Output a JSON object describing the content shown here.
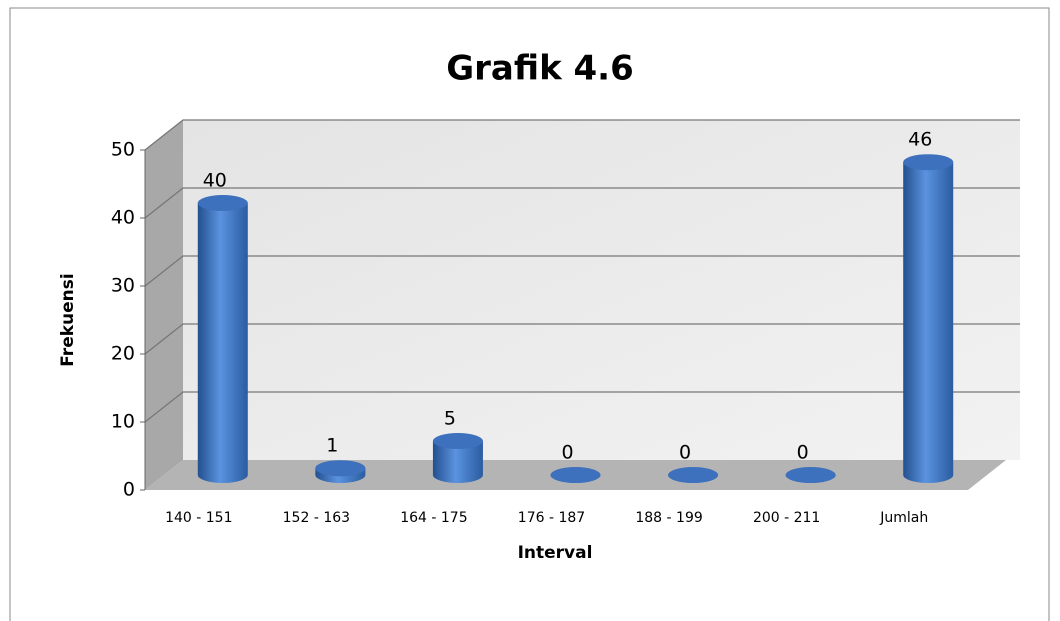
{
  "chart_data": {
    "type": "bar3d",
    "title": "Grafik 4.6",
    "x_label": "Interval",
    "y_label": "Frekuensi",
    "categories": [
      "140 - 151",
      "152 - 163",
      "164 - 175",
      "176 - 187",
      "188 - 199",
      "200 - 211",
      "Jumlah"
    ],
    "values": [
      40,
      1,
      5,
      0,
      0,
      0,
      46
    ],
    "color": "#4a7fcf",
    "ylim": [
      0,
      50
    ],
    "yticks": [
      0,
      10,
      20,
      30,
      40,
      50
    ],
    "grid": true
  }
}
